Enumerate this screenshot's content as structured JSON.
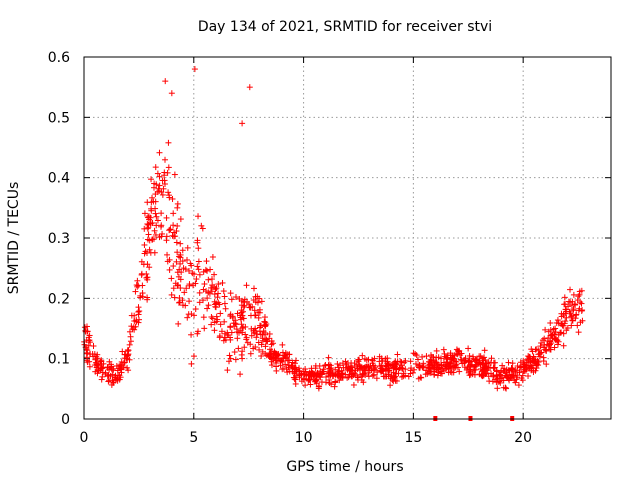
{
  "chart_data": {
    "type": "scatter",
    "title": "Day 134 of 2021, SRMTID for receiver stvi",
    "xlabel": "GPS time / hours",
    "ylabel": "SRMTID / TECUs",
    "xlim": [
      0,
      24
    ],
    "ylim": [
      0,
      0.6
    ],
    "x_ticks": [
      0,
      5,
      10,
      15,
      20
    ],
    "y_ticks": [
      0,
      0.1,
      0.2,
      0.3,
      0.4,
      0.5,
      0.6
    ],
    "x_tick_labels": [
      "0",
      "5",
      "10",
      "15",
      "20"
    ],
    "y_tick_labels": [
      "0",
      "0.1",
      "0.2",
      "0.3",
      "0.4",
      "0.5",
      "0.6"
    ],
    "grid": true,
    "marker": "+",
    "color": "#ff0000",
    "gap_markers_x": [
      16.0,
      17.6,
      19.5
    ],
    "series_envelope": [
      {
        "x": 0.0,
        "y": 0.13,
        "spread": 0.05
      },
      {
        "x": 0.5,
        "y": 0.1,
        "spread": 0.04
      },
      {
        "x": 1.0,
        "y": 0.08,
        "spread": 0.03
      },
      {
        "x": 1.5,
        "y": 0.075,
        "spread": 0.03
      },
      {
        "x": 2.0,
        "y": 0.1,
        "spread": 0.04
      },
      {
        "x": 2.5,
        "y": 0.2,
        "spread": 0.08
      },
      {
        "x": 3.0,
        "y": 0.32,
        "spread": 0.14
      },
      {
        "x": 3.5,
        "y": 0.36,
        "spread": 0.16
      },
      {
        "x": 4.0,
        "y": 0.3,
        "spread": 0.18
      },
      {
        "x": 4.5,
        "y": 0.22,
        "spread": 0.1
      },
      {
        "x": 5.0,
        "y": 0.22,
        "spread": 0.18
      },
      {
        "x": 5.5,
        "y": 0.22,
        "spread": 0.12
      },
      {
        "x": 6.0,
        "y": 0.2,
        "spread": 0.12
      },
      {
        "x": 6.5,
        "y": 0.14,
        "spread": 0.1
      },
      {
        "x": 7.0,
        "y": 0.13,
        "spread": 0.09
      },
      {
        "x": 7.5,
        "y": 0.17,
        "spread": 0.12
      },
      {
        "x": 8.0,
        "y": 0.16,
        "spread": 0.08
      },
      {
        "x": 8.5,
        "y": 0.11,
        "spread": 0.04
      },
      {
        "x": 9.0,
        "y": 0.1,
        "spread": 0.03
      },
      {
        "x": 10.0,
        "y": 0.07,
        "spread": 0.03
      },
      {
        "x": 11.0,
        "y": 0.075,
        "spread": 0.03
      },
      {
        "x": 12.0,
        "y": 0.08,
        "spread": 0.03
      },
      {
        "x": 13.0,
        "y": 0.085,
        "spread": 0.03
      },
      {
        "x": 14.0,
        "y": 0.08,
        "spread": 0.03
      },
      {
        "x": 15.0,
        "y": 0.085,
        "spread": 0.03
      },
      {
        "x": 16.0,
        "y": 0.09,
        "spread": 0.03
      },
      {
        "x": 17.0,
        "y": 0.095,
        "spread": 0.03
      },
      {
        "x": 18.0,
        "y": 0.09,
        "spread": 0.03
      },
      {
        "x": 19.0,
        "y": 0.07,
        "spread": 0.03
      },
      {
        "x": 20.0,
        "y": 0.08,
        "spread": 0.03
      },
      {
        "x": 20.5,
        "y": 0.1,
        "spread": 0.03
      },
      {
        "x": 21.0,
        "y": 0.12,
        "spread": 0.04
      },
      {
        "x": 21.5,
        "y": 0.14,
        "spread": 0.05
      },
      {
        "x": 22.0,
        "y": 0.17,
        "spread": 0.06
      },
      {
        "x": 22.7,
        "y": 0.19,
        "spread": 0.06
      }
    ],
    "peak_points": [
      {
        "x": 3.7,
        "y": 0.56
      },
      {
        "x": 5.05,
        "y": 0.58
      },
      {
        "x": 7.55,
        "y": 0.55
      },
      {
        "x": 7.2,
        "y": 0.49
      },
      {
        "x": 4.0,
        "y": 0.54
      }
    ]
  }
}
